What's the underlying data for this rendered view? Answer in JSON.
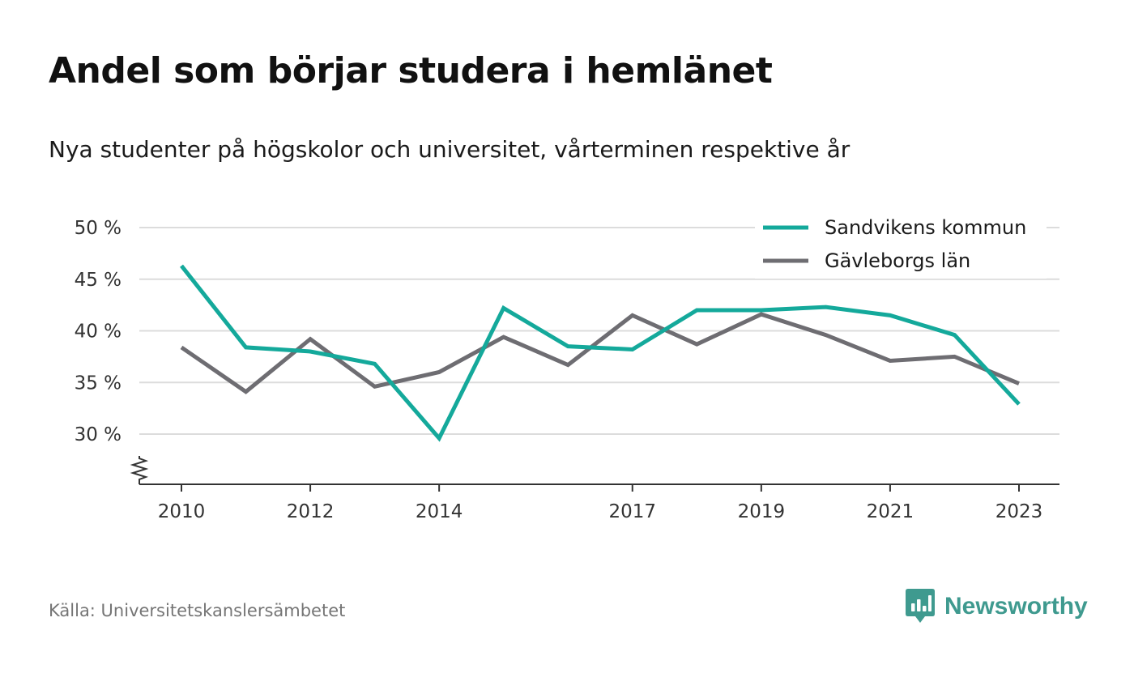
{
  "title": "Andel som börjar studera i hemlänet",
  "subtitle": "Nya studenter på högskolor och universitet, vårterminen respektive år",
  "source": "Källa: Universitetskanslersämbetet",
  "brand": {
    "name": "Newsworthy",
    "icon": "newsworthy-logo-icon",
    "color": "#3f9a8f"
  },
  "chart_data": {
    "type": "line",
    "x": [
      2010,
      2011,
      2012,
      2013,
      2014,
      2015,
      2016,
      2017,
      2018,
      2019,
      2020,
      2021,
      2022,
      2023
    ],
    "x_tick_labels": [
      "2010",
      "2012",
      "2014",
      "2017",
      "2019",
      "2021",
      "2023"
    ],
    "y_ticks": [
      30,
      35,
      40,
      45,
      50
    ],
    "y_tick_labels": [
      "30 %",
      "35 %",
      "40 %",
      "45 %",
      "50 %"
    ],
    "ylim": [
      25,
      50
    ],
    "axis_break": true,
    "grid": true,
    "legend_position": "top-right",
    "series": [
      {
        "name": "Sandvikens kommun",
        "color": "#14a99b",
        "values": [
          46.3,
          38.4,
          38.0,
          36.8,
          29.6,
          42.2,
          38.5,
          38.2,
          42.0,
          42.0,
          42.3,
          41.5,
          39.6,
          32.9
        ]
      },
      {
        "name": "Gävleborgs län",
        "color": "#6e6d72",
        "values": [
          38.4,
          34.1,
          39.2,
          34.6,
          36.0,
          39.4,
          36.7,
          41.5,
          38.7,
          41.6,
          39.6,
          37.1,
          37.5,
          34.9
        ]
      }
    ]
  }
}
